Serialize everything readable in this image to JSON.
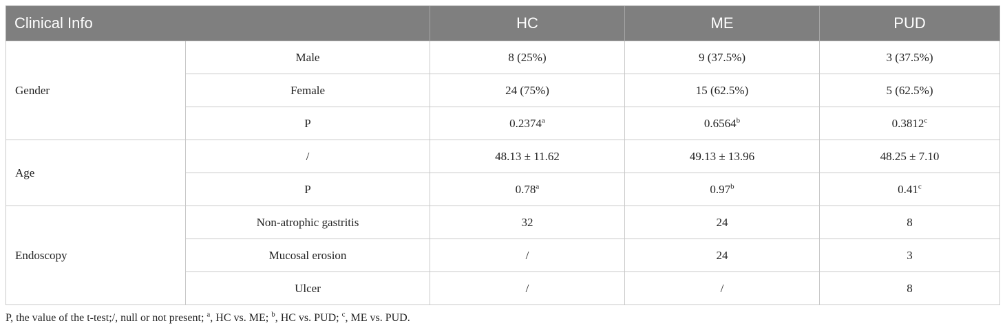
{
  "header": {
    "clinical_info": "Clinical Info",
    "hc": "HC",
    "me": "ME",
    "pud": "PUD"
  },
  "rows": {
    "gender": {
      "label": "Gender",
      "male": {
        "label": "Male",
        "hc": "8 (25%)",
        "me": "9 (37.5%)",
        "pud": "3 (37.5%)"
      },
      "female": {
        "label": "Female",
        "hc": "24 (75%)",
        "me": "15 (62.5%)",
        "pud": "5 (62.5%)"
      },
      "p": {
        "label": "P",
        "hc": "0.2374",
        "hc_sup": "a",
        "me": "0.6564",
        "me_sup": "b",
        "pud": "0.3812",
        "pud_sup": "c"
      }
    },
    "age": {
      "label": "Age",
      "value": {
        "label": "/",
        "hc": "48.13 ± 11.62",
        "me": "49.13 ± 13.96",
        "pud": "48.25 ± 7.10"
      },
      "p": {
        "label": "P",
        "hc": "0.78",
        "hc_sup": "a",
        "me": "0.97",
        "me_sup": "b",
        "pud": "0.41",
        "pud_sup": "c"
      }
    },
    "endoscopy": {
      "label": "Endoscopy",
      "non_atrophic": {
        "label": "Non-atrophic gastritis",
        "hc": "32",
        "me": "24",
        "pud": "8"
      },
      "mucosal": {
        "label": "Mucosal erosion",
        "hc": "/",
        "me": "24",
        "pud": "3"
      },
      "ulcer": {
        "label": "Ulcer",
        "hc": "/",
        "me": "/",
        "pud": "8"
      }
    }
  },
  "footnote": {
    "part1": "P, the value of the t-test;/, null or not present; ",
    "sup_a": "a",
    "part2": ", HC vs. ME; ",
    "sup_b": "b",
    "part3": ", HC vs. PUD; ",
    "sup_c": "c",
    "part4": ", ME vs. PUD."
  }
}
